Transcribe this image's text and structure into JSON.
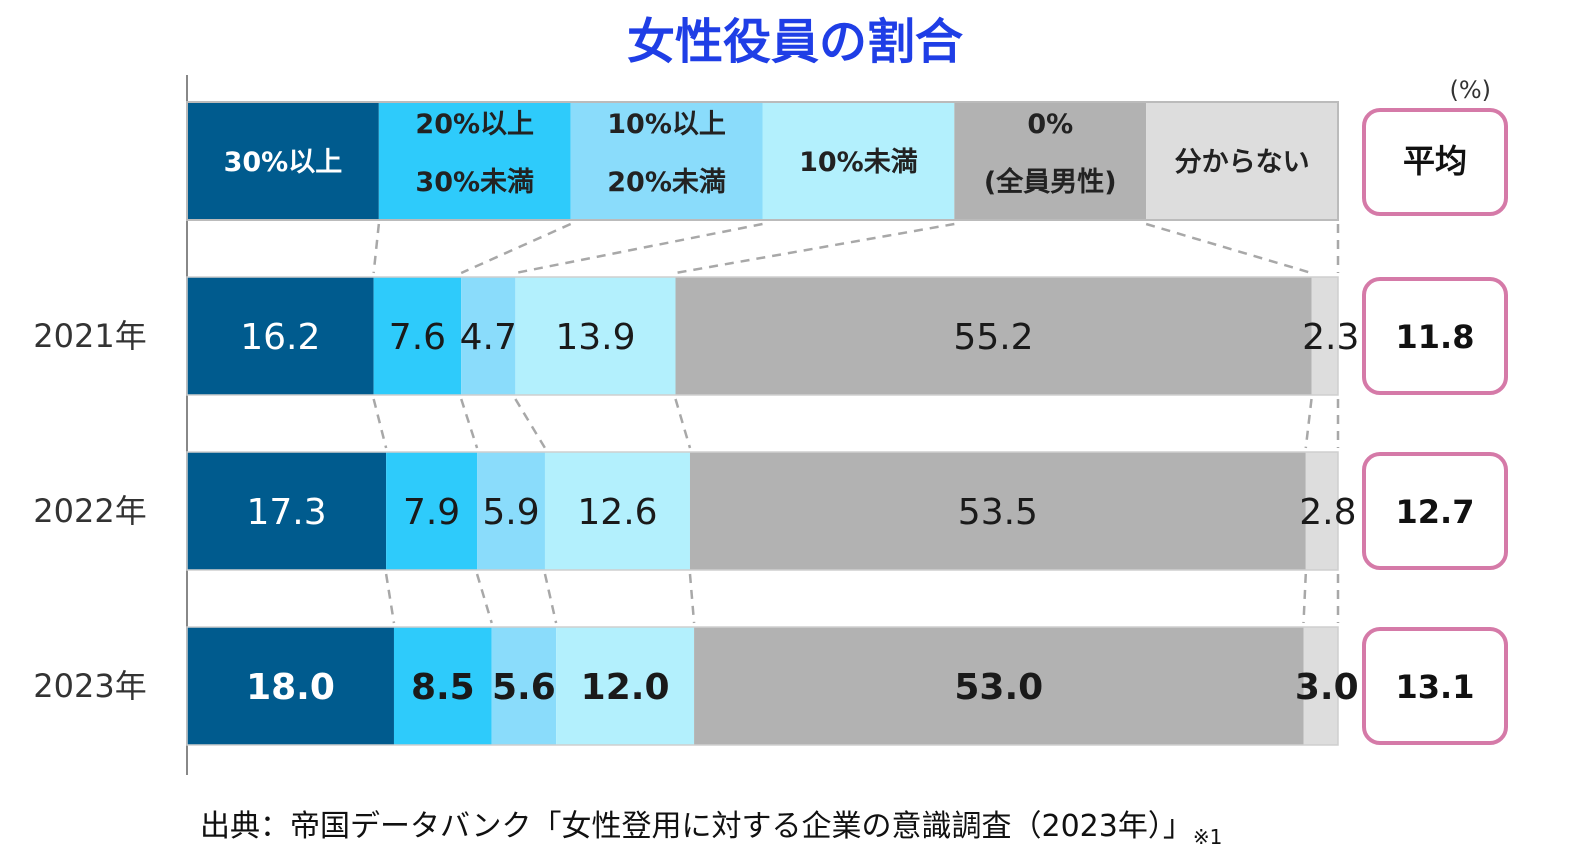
{
  "chart_data": {
    "type": "bar",
    "orientation": "horizontal",
    "stacked": true,
    "normalized_100": true,
    "title": "女性役員の割合",
    "unit": "(%)",
    "categories": [
      "2021年",
      "2022年",
      "2023年"
    ],
    "series": [
      {
        "name": "30%以上",
        "label_lines": [
          "30%以上"
        ],
        "color": "#005b8e",
        "text_color": "#ffffff",
        "values": [
          16.2,
          17.3,
          18.0
        ]
      },
      {
        "name": "20%以上30%未満",
        "label_lines": [
          "20%以上",
          "30%未満"
        ],
        "color": "#2ecbfb",
        "text_color": "#222222",
        "values": [
          7.6,
          7.9,
          8.5
        ]
      },
      {
        "name": "10%以上20%未満",
        "label_lines": [
          "10%以上",
          "20%未満"
        ],
        "color": "#8adcfb",
        "text_color": "#222222",
        "values": [
          4.7,
          5.9,
          5.6
        ]
      },
      {
        "name": "10%未満",
        "label_lines": [
          "10%未満"
        ],
        "color": "#b3f0fd",
        "text_color": "#222222",
        "values": [
          13.9,
          12.6,
          12.0
        ]
      },
      {
        "name": "0%(全員男性)",
        "label_lines": [
          "0%",
          "(全員男性)"
        ],
        "color": "#b2b2b2",
        "text_color": "#222222",
        "values": [
          55.2,
          53.5,
          53.0
        ]
      },
      {
        "name": "分からない",
        "label_lines": [
          "分からない"
        ],
        "color": "#dddddd",
        "text_color": "#222222",
        "values": [
          2.3,
          2.8,
          3.0
        ]
      }
    ],
    "value_labels": [
      [
        "16.2",
        "7.6",
        "4.7",
        "13.9",
        "55.2",
        "2.3"
      ],
      [
        "17.3",
        "7.9",
        "5.9",
        "12.6",
        "53.5",
        "2.8"
      ],
      [
        "18.0",
        "8.5",
        "5.6",
        "12.0",
        "53.0",
        "3.0"
      ]
    ],
    "bold_rows": [
      false,
      false,
      true
    ],
    "average": {
      "header": "平均",
      "values": [
        "11.8",
        "12.7",
        "13.1"
      ],
      "border_color": "#d57aa8"
    },
    "connector_lines": true,
    "grid": false,
    "legend": "top"
  },
  "source": {
    "text": "出典：帝国データバンク「女性登用に対する企業の意識調査（2023年）」",
    "note": "※1"
  }
}
